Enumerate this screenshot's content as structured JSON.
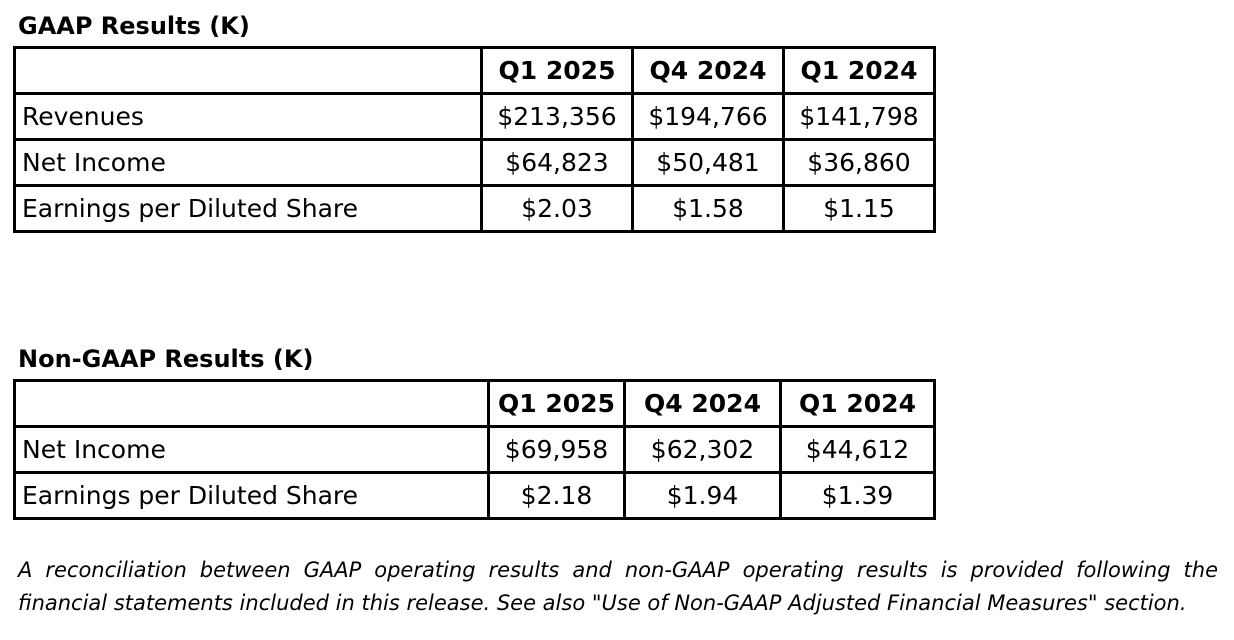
{
  "gaap": {
    "title": "GAAP Results (K)",
    "headers": [
      "",
      "Q1 2025",
      "Q4 2024",
      "Q1 2024"
    ],
    "rows": [
      {
        "label": "Revenues",
        "values": [
          "$213,356",
          "$194,766",
          "$141,798"
        ]
      },
      {
        "label": "Net Income",
        "values": [
          "$64,823",
          "$50,481",
          "$36,860"
        ]
      },
      {
        "label": "Earnings per Diluted Share",
        "values": [
          "$2.03",
          "$1.58",
          "$1.15"
        ]
      }
    ]
  },
  "nongaap": {
    "title": "Non-GAAP Results (K)",
    "headers": [
      "",
      "Q1 2025",
      "Q4 2024",
      "Q1 2024"
    ],
    "rows": [
      {
        "label": "Net Income",
        "values": [
          "$69,958",
          "$62,302",
          "$44,612"
        ]
      },
      {
        "label": "Earnings per Diluted Share",
        "values": [
          "$2.18",
          "$1.94",
          "$1.39"
        ]
      }
    ]
  },
  "footnote": "A reconciliation between GAAP operating results and non-GAAP operating results is provided following the financial statements included in this release. See also \"Use of Non-GAAP Adjusted Financial Measures\" section."
}
